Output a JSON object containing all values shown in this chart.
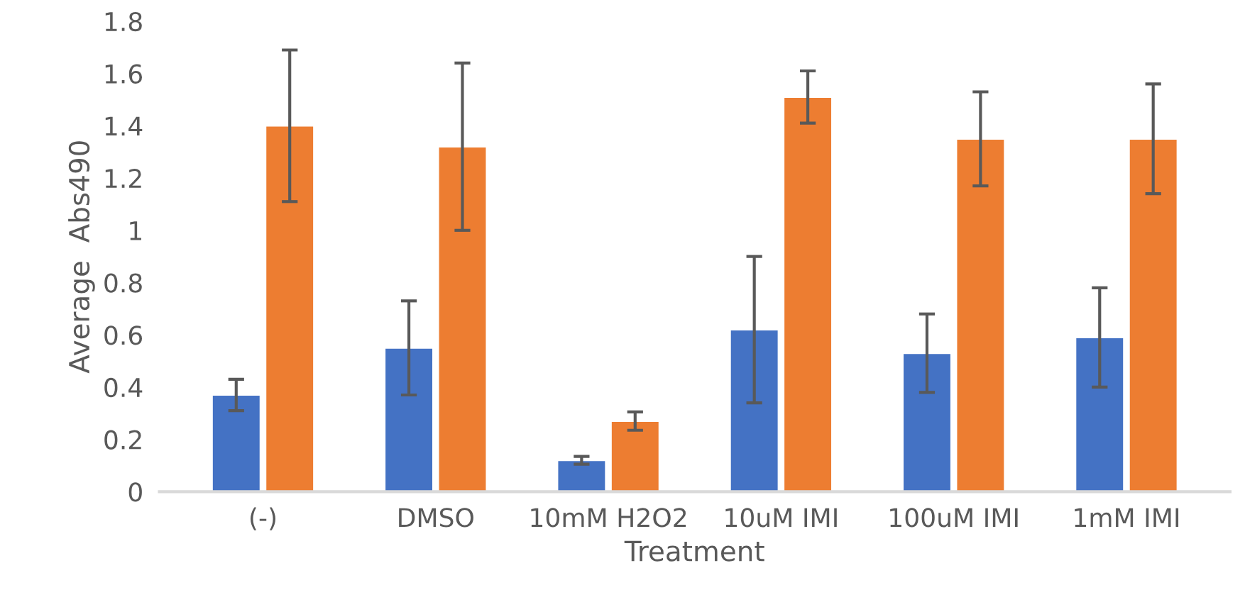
{
  "chart_data": {
    "type": "bar",
    "xlabel": "Treatment",
    "ylabel": "Average  Abs490",
    "categories": [
      "(-)",
      "DMSO",
      "10mM H2O2",
      "10uM IMI",
      "100uM IMI",
      "1mM IMI"
    ],
    "series": [
      {
        "color": "#4472c4",
        "values": [
          0.37,
          0.55,
          0.12,
          0.62,
          0.53,
          0.59
        ],
        "errors": [
          0.06,
          0.18,
          0.015,
          0.28,
          0.15,
          0.19
        ]
      },
      {
        "color": "#ed7d31",
        "values": [
          1.4,
          1.32,
          0.27,
          1.51,
          1.35,
          1.35
        ],
        "errors": [
          0.29,
          0.32,
          0.035,
          0.1,
          0.18,
          0.21
        ]
      }
    ],
    "ylim": [
      0,
      1.8
    ],
    "yticks": [
      0,
      0.2,
      0.4,
      0.6,
      0.8,
      1,
      1.2,
      1.4,
      1.6,
      1.8
    ],
    "grid": false,
    "legend": false
  }
}
